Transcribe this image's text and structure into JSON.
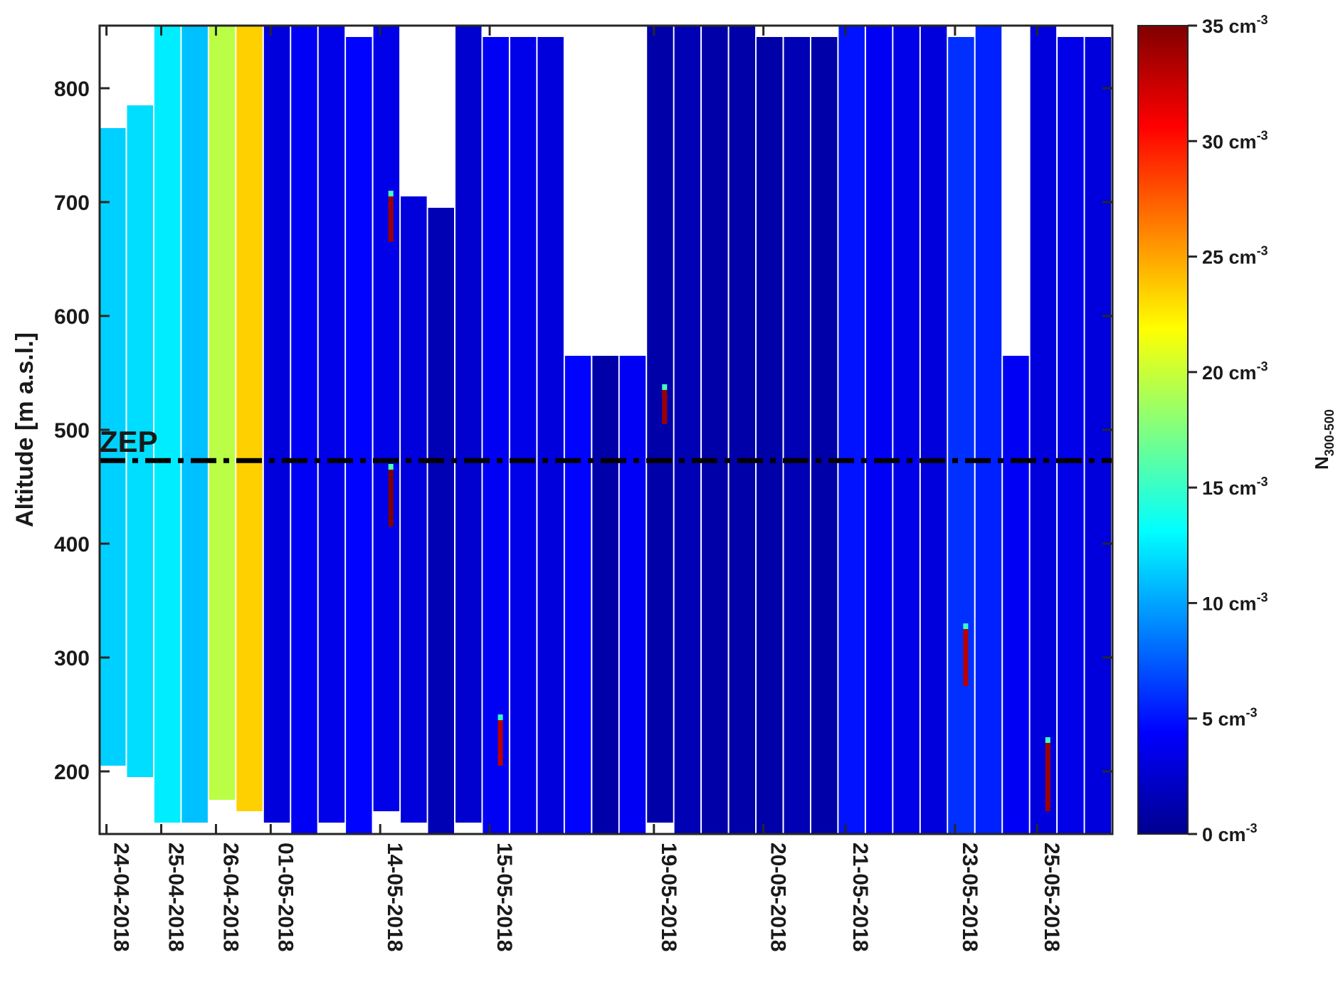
{
  "chart_data": {
    "type": "heatmap",
    "title": "",
    "xlabel": "",
    "ylabel": "Altitude [m a.s.l.]",
    "ylim": [
      145,
      855
    ],
    "y_ticks": [
      "200",
      "300",
      "400",
      "500",
      "600",
      "700",
      "800"
    ],
    "y_tick_values": [
      200,
      300,
      400,
      500,
      600,
      700,
      800
    ],
    "x_tick_labels": [
      "24-04-2018",
      "25-04-2018",
      "26-04-2018",
      "01-05-2018",
      "14-05-2018",
      "15-05-2018",
      "19-05-2018",
      "20-05-2018",
      "21-05-2018",
      "23-05-2018",
      "25-05-2018"
    ],
    "x_note": "columns are ordered flights; x axis is categorical (profile index), not linear in time",
    "colorbar": {
      "label": "N",
      "label_sub": "300-500",
      "min": 0,
      "max": 35,
      "unit": "cm",
      "unit_exp": "-3",
      "tick_values": [
        0,
        5,
        10,
        15,
        20,
        25,
        30,
        35
      ],
      "tick_labels": [
        "0 cm",
        "5 cm",
        "10 cm",
        "15 cm",
        "20 cm",
        "25 cm",
        "30 cm",
        "35 cm"
      ],
      "colormap": "jet",
      "colormap_stops": [
        "#00008f",
        "#0000ff",
        "#0080ff",
        "#00ffff",
        "#80ff80",
        "#ffff00",
        "#ff8000",
        "#ff0000",
        "#800000"
      ]
    },
    "reference_line": {
      "label": "ZEP",
      "altitude": 473,
      "style": "dash-dot",
      "color": "#000000"
    },
    "profiles": [
      {
        "date": "24-04-2018",
        "top": 765,
        "bottom": 205,
        "value": 11.5
      },
      {
        "date": "24-04-2018",
        "top": 785,
        "bottom": 195,
        "value": 12.0
      },
      {
        "date": "25-04-2018",
        "top": 855,
        "bottom": 155,
        "value": 12.5
      },
      {
        "date": "25-04-2018",
        "top": 855,
        "bottom": 155,
        "value": 11.0
      },
      {
        "date": "26-04-2018",
        "top": 855,
        "bottom": 175,
        "value": 19.5
      },
      {
        "date": "26-04-2018",
        "top": 855,
        "bottom": 165,
        "value": 23.5
      },
      {
        "date": "01-05-2018",
        "top": 855,
        "bottom": 155,
        "value": 3.0
      },
      {
        "date": "01-05-2018",
        "top": 855,
        "bottom": 145,
        "value": 4.0
      },
      {
        "date": "01-05-2018",
        "top": 855,
        "bottom": 155,
        "value": 3.5
      },
      {
        "date": "01-05-2018",
        "top": 845,
        "bottom": 145,
        "value": 4.5
      },
      {
        "date": "14-05-2018",
        "top": 855,
        "bottom": 165,
        "value": 3.5
      },
      {
        "date": "14-05-2018",
        "top": 705,
        "bottom": 155,
        "value": 3.0
      },
      {
        "date": "14-05-2018",
        "top": 695,
        "bottom": 145,
        "value": 1.5
      },
      {
        "date": "14-05-2018",
        "top": 855,
        "bottom": 155,
        "value": 2.5
      },
      {
        "date": "15-05-2018",
        "top": 845,
        "bottom": 145,
        "value": 4.0
      },
      {
        "date": "15-05-2018",
        "top": 845,
        "bottom": 145,
        "value": 3.5
      },
      {
        "date": "15-05-2018",
        "top": 845,
        "bottom": 145,
        "value": 3.0
      },
      {
        "date": "15-05-2018",
        "top": 565,
        "bottom": 145,
        "value": 4.5
      },
      {
        "date": "15-05-2018",
        "top": 565,
        "bottom": 145,
        "value": 1.0
      },
      {
        "date": "15-05-2018",
        "top": 565,
        "bottom": 145,
        "value": 4.0
      },
      {
        "date": "19-05-2018",
        "top": 855,
        "bottom": 155,
        "value": 1.0
      },
      {
        "date": "19-05-2018",
        "top": 855,
        "bottom": 145,
        "value": 1.5
      },
      {
        "date": "19-05-2018",
        "top": 855,
        "bottom": 145,
        "value": 1.0
      },
      {
        "date": "19-05-2018",
        "top": 855,
        "bottom": 145,
        "value": 1.0
      },
      {
        "date": "20-05-2018",
        "top": 845,
        "bottom": 145,
        "value": 1.0
      },
      {
        "date": "20-05-2018",
        "top": 845,
        "bottom": 145,
        "value": 1.5
      },
      {
        "date": "20-05-2018",
        "top": 845,
        "bottom": 145,
        "value": 1.0
      },
      {
        "date": "21-05-2018",
        "top": 855,
        "bottom": 145,
        "value": 5.0
      },
      {
        "date": "21-05-2018",
        "top": 855,
        "bottom": 145,
        "value": 4.0
      },
      {
        "date": "21-05-2018",
        "top": 855,
        "bottom": 145,
        "value": 3.5
      },
      {
        "date": "21-05-2018",
        "top": 855,
        "bottom": 145,
        "value": 3.0
      },
      {
        "date": "23-05-2018",
        "top": 845,
        "bottom": 145,
        "value": 6.0
      },
      {
        "date": "23-05-2018",
        "top": 855,
        "bottom": 145,
        "value": 5.5
      },
      {
        "date": "23-05-2018",
        "top": 565,
        "bottom": 145,
        "value": 4.0
      },
      {
        "date": "25-05-2018",
        "top": 855,
        "bottom": 145,
        "value": 3.0
      },
      {
        "date": "25-05-2018",
        "top": 845,
        "bottom": 145,
        "value": 3.5
      },
      {
        "date": "25-05-2018",
        "top": 845,
        "bottom": 145,
        "value": 3.0
      }
    ],
    "spikes": [
      {
        "date": "14-05-2018",
        "altitude_top": 465,
        "altitude_bottom": 415,
        "value": 35
      },
      {
        "date": "14-05-2018",
        "altitude_top": 705,
        "altitude_bottom": 665,
        "value": 34
      },
      {
        "date": "15-05-2018",
        "altitude_top": 245,
        "altitude_bottom": 205,
        "value": 33
      },
      {
        "date": "19-05-2018",
        "altitude_top": 535,
        "altitude_bottom": 505,
        "value": 34
      },
      {
        "date": "23-05-2018",
        "altitude_top": 325,
        "altitude_bottom": 275,
        "value": 33
      },
      {
        "date": "25-05-2018",
        "altitude_top": 225,
        "altitude_bottom": 165,
        "value": 34
      }
    ]
  }
}
